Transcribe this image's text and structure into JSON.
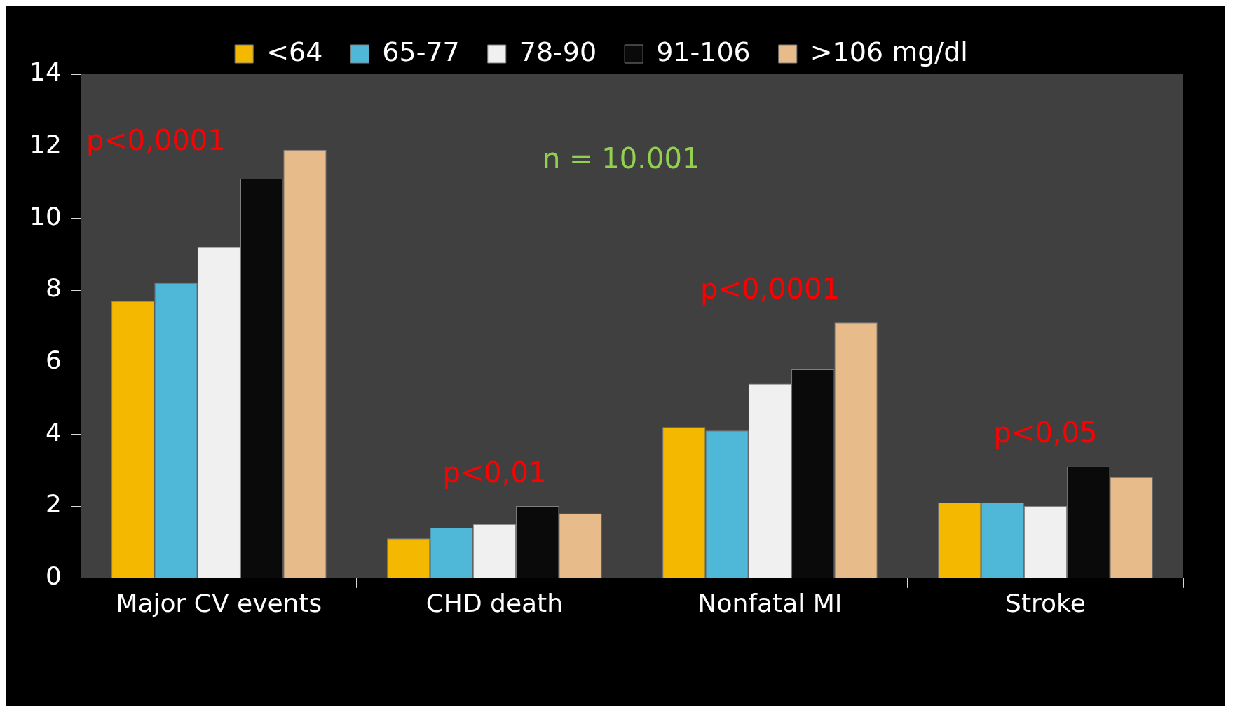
{
  "chart_data": {
    "type": "bar",
    "categories": [
      "Major CV events",
      "CHD death",
      "Nonfatal MI",
      "Stroke"
    ],
    "series": [
      {
        "name": "<64",
        "color": "#f5b800",
        "values": [
          7.7,
          1.1,
          4.2,
          2.1
        ]
      },
      {
        "name": "65-77",
        "color": "#4fb8d8",
        "values": [
          8.2,
          1.4,
          4.1,
          2.1
        ]
      },
      {
        "name": "78-90",
        "color": "#f0f0f0",
        "values": [
          9.2,
          1.5,
          5.4,
          2.0
        ]
      },
      {
        "name": "91-106",
        "color": "#0a0a0a",
        "values": [
          11.1,
          2.0,
          5.8,
          3.1
        ]
      },
      {
        "name": ">106 mg/dl",
        "color": "#e8bb8a",
        "values": [
          11.9,
          1.8,
          7.1,
          2.8
        ]
      }
    ],
    "ylim": [
      0,
      14
    ],
    "yticks": [
      0,
      2,
      4,
      6,
      8,
      10,
      12,
      14
    ],
    "grid": false,
    "legend": "top",
    "annotations": [
      "p<0,0001",
      "p<0,01",
      "p<0,0001",
      "p<0,05",
      "n = 10.001"
    ]
  }
}
